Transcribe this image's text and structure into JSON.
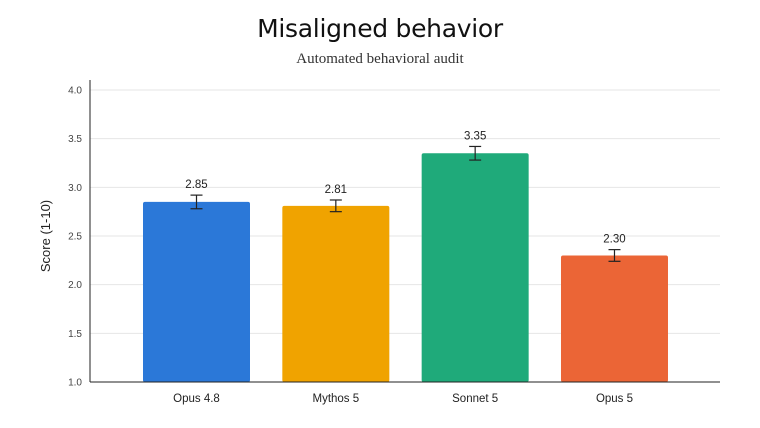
{
  "chart_data": {
    "type": "bar",
    "title": "Misaligned behavior",
    "subtitle": "Automated behavioral audit",
    "xlabel": "",
    "ylabel": "Score (1-10)",
    "ylim": [
      1.0,
      4.0
    ],
    "yticks": [
      "1.0",
      "1.5",
      "2.0",
      "2.5",
      "3.0",
      "3.5",
      "4.0"
    ],
    "categories": [
      "Opus 4.8",
      "Mythos 5",
      "Sonnet 5",
      "Opus 5"
    ],
    "values": [
      2.85,
      2.81,
      3.35,
      2.3
    ],
    "value_labels": [
      "2.85",
      "2.81",
      "3.35",
      "2.30"
    ],
    "error": [
      0.07,
      0.06,
      0.07,
      0.06
    ],
    "colors": [
      "#2b78d8",
      "#f0a300",
      "#1faa7a",
      "#eb6536"
    ],
    "grid": true,
    "legend": "none"
  }
}
